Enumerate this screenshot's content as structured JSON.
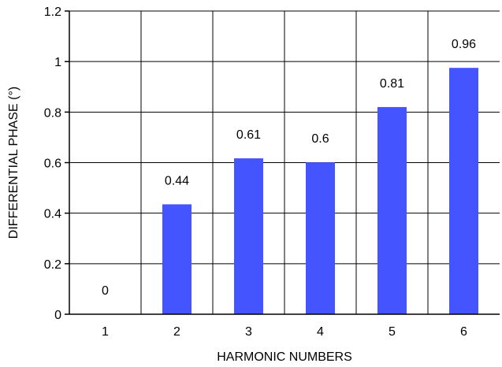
{
  "chart_data": {
    "type": "bar",
    "title": "",
    "xlabel": "HARMONIC NUMBERS",
    "ylabel": "DIFFERENTIAL PHASE (°)",
    "categories": [
      "1",
      "2",
      "3",
      "4",
      "5",
      "6"
    ],
    "values": [
      0,
      0.44,
      0.61,
      0.6,
      0.81,
      0.96
    ],
    "data_labels": [
      "0",
      "0.44",
      "0.61",
      "0.6",
      "0.81",
      "0.96"
    ],
    "ylim": [
      0,
      1.2
    ],
    "yticks": [
      0,
      0.2,
      0.4,
      0.6,
      0.8,
      1,
      1.2
    ],
    "ytick_labels": [
      "0",
      "0.2",
      "0.4",
      "0.6",
      "0.8",
      "1",
      "1.2"
    ],
    "grid": true,
    "legend": "none",
    "bar_value_positions": [
      0,
      0.435,
      0.617,
      0.601,
      0.82,
      0.975
    ]
  },
  "colors": {
    "bar": "#4455ff",
    "grid": "#000000",
    "axis": "#000000",
    "text": "#000000"
  }
}
